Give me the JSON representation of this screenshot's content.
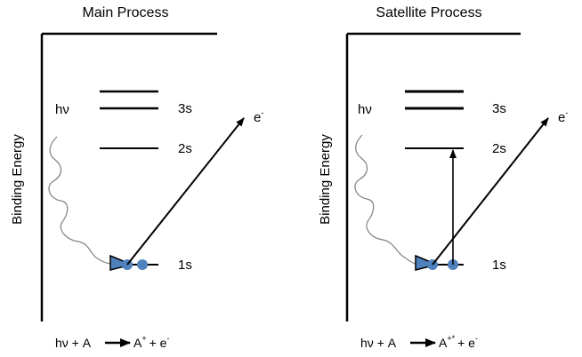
{
  "panels": [
    {
      "id": "main",
      "title": "Main Process",
      "axis_label": "Binding Energy",
      "photon_label": "hν",
      "electron_label": "e",
      "electron_charge": "-",
      "levels": [
        "3s",
        "2s",
        "1s"
      ],
      "equation": {
        "lhs": "hν + A",
        "product_base": "A",
        "product_charge": "+",
        "tail": "+ e",
        "tail_charge": "-"
      }
    },
    {
      "id": "satellite",
      "title": "Satellite Process",
      "axis_label": "Binding Energy",
      "photon_label": "hν",
      "electron_label": "e",
      "electron_charge": "-",
      "levels": [
        "3s",
        "2s",
        "1s"
      ],
      "equation": {
        "lhs": "hν + A",
        "product_base": "A",
        "product_charge": "+*",
        "tail": "+ e",
        "tail_charge": "-"
      }
    }
  ],
  "colors": {
    "electron": "#4f81bd",
    "line": "#000000"
  }
}
